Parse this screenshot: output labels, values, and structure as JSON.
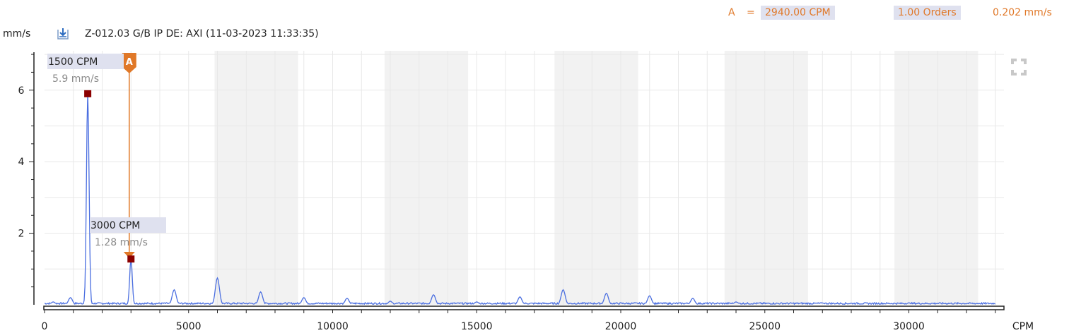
{
  "header": {
    "cursor_letter": "A",
    "equals": "=",
    "cursor_value": "2940.00 CPM",
    "orders": "1.00 Orders",
    "amplitude": "0.202 mm/s"
  },
  "title": {
    "unit": "mm/s",
    "text": "Z-012.03  G/B IP DE: AXI (11-03-2023 11:33:35)"
  },
  "colors": {
    "spectrum": "#4a6ee0",
    "cursor": "#e07828",
    "marker": "#8b0000",
    "band": "#f2f2f2",
    "grid": "#e8e8e8"
  },
  "chart_data": {
    "type": "line",
    "xlabel": "CPM",
    "ylabel": "mm/s",
    "xlim": [
      0,
      33500
    ],
    "ylim": [
      0,
      7.1
    ],
    "x_ticks": [
      0,
      5000,
      10000,
      15000,
      20000,
      25000,
      30000
    ],
    "y_ticks": [
      2,
      4,
      6
    ],
    "grid": true,
    "alternating_bands": [
      [
        5900,
        8800
      ],
      [
        11800,
        14700
      ],
      [
        17700,
        20600
      ],
      [
        23600,
        26500
      ],
      [
        29500,
        32400
      ]
    ],
    "series": [
      {
        "peaks": [
          {
            "x": 300,
            "y": 0.08
          },
          {
            "x": 900,
            "y": 0.2
          },
          {
            "x": 1500,
            "y": 5.9
          },
          {
            "x": 3000,
            "y": 1.28
          },
          {
            "x": 4500,
            "y": 0.42
          },
          {
            "x": 6000,
            "y": 0.75
          },
          {
            "x": 7500,
            "y": 0.36
          },
          {
            "x": 9000,
            "y": 0.2
          },
          {
            "x": 10500,
            "y": 0.18
          },
          {
            "x": 12000,
            "y": 0.1
          },
          {
            "x": 13500,
            "y": 0.28
          },
          {
            "x": 15000,
            "y": 0.08
          },
          {
            "x": 16500,
            "y": 0.22
          },
          {
            "x": 18000,
            "y": 0.42
          },
          {
            "x": 19500,
            "y": 0.32
          },
          {
            "x": 21000,
            "y": 0.25
          },
          {
            "x": 22500,
            "y": 0.18
          },
          {
            "x": 24000,
            "y": 0.08
          },
          {
            "x": 27000,
            "y": 0.05
          },
          {
            "x": 30000,
            "y": 0.05
          }
        ],
        "noise_floor": 0.05
      }
    ],
    "cursor": {
      "letter": "A",
      "x": 2940
    },
    "markers": [
      {
        "x": 1500,
        "y": 5.9,
        "label": "1500 CPM",
        "value": "5.9 mm/s"
      },
      {
        "x": 3000,
        "y": 1.28,
        "label": "3000 CPM",
        "value": "1.28 mm/s"
      }
    ]
  }
}
